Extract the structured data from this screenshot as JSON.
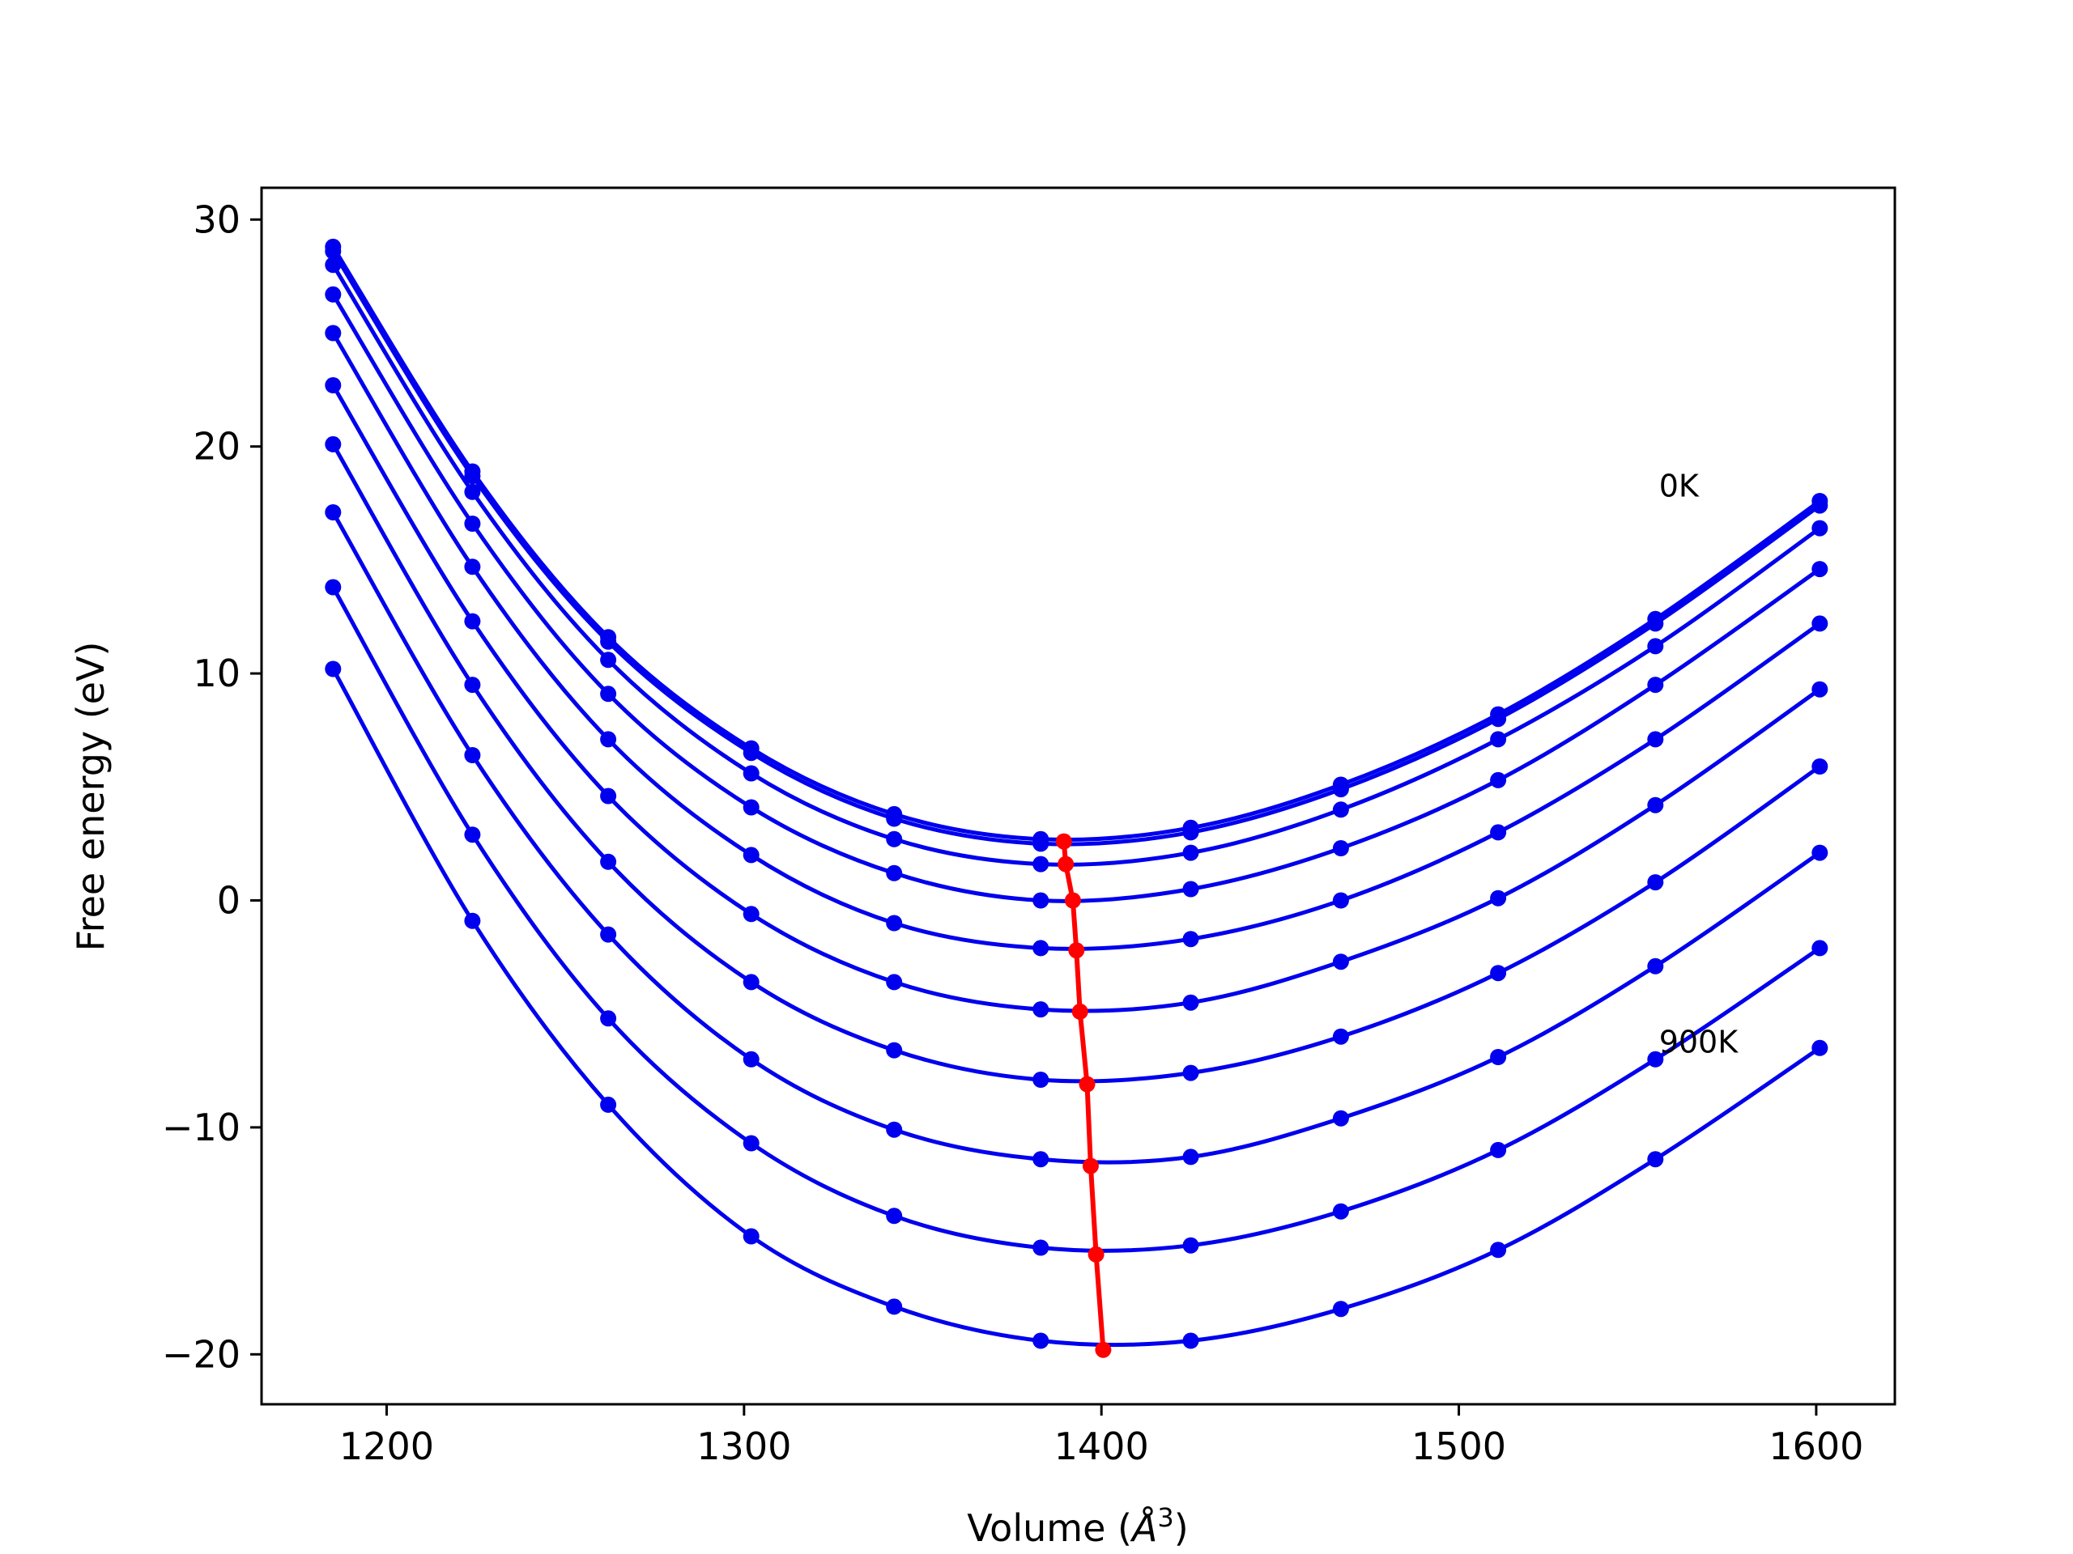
{
  "chart_data": {
    "type": "line",
    "title": "",
    "xlabel": "Volume (",
    "xlabel_symbol": "Å",
    "xlabel_exp": "3",
    "xlabel_close": ")",
    "ylabel": "Free energy (eV)",
    "xlim": [
      1165,
      1622
    ],
    "ylim": [
      -22.2,
      31.4
    ],
    "x_ticks": [
      1200,
      1300,
      1400,
      1500,
      1600
    ],
    "x_tick_labels": [
      "1200",
      "1300",
      "1400",
      "1500",
      "1600"
    ],
    "y_ticks": [
      -20,
      -10,
      0,
      10,
      20,
      30
    ],
    "y_tick_labels": [
      "−20",
      "−10",
      "0",
      "10",
      "20",
      "30"
    ],
    "grid": false,
    "x": [
      1185,
      1224,
      1262,
      1302,
      1342,
      1383,
      1425,
      1467,
      1511,
      1555,
      1601
    ],
    "colors": {
      "curves": "#0000ee",
      "minima": "#ff0000"
    },
    "series": [
      {
        "values": [
          28.8,
          18.9,
          11.6,
          6.7,
          3.8,
          2.7,
          3.2,
          5.1,
          8.2,
          12.4,
          17.6
        ]
      },
      {
        "values": [
          28.6,
          18.7,
          11.4,
          6.5,
          3.6,
          2.5,
          3.0,
          4.9,
          8.0,
          12.2,
          17.4
        ]
      },
      {
        "values": [
          28.0,
          18.0,
          10.6,
          5.6,
          2.7,
          1.6,
          2.1,
          4.0,
          7.1,
          11.2,
          16.4
        ]
      },
      {
        "values": [
          26.7,
          16.6,
          9.1,
          4.1,
          1.2,
          0.0,
          0.5,
          2.3,
          5.3,
          9.5,
          14.6
        ]
      },
      {
        "values": [
          25.0,
          14.7,
          7.1,
          2.0,
          -1.0,
          -2.1,
          -1.7,
          0.0,
          3.0,
          7.1,
          12.2
        ]
      },
      {
        "values": [
          22.7,
          12.3,
          4.6,
          -0.6,
          -3.6,
          -4.8,
          -4.5,
          -2.7,
          0.1,
          4.2,
          9.3
        ]
      },
      {
        "values": [
          20.1,
          9.5,
          1.7,
          -3.6,
          -6.6,
          -7.9,
          -7.6,
          -6.0,
          -3.2,
          0.8,
          5.9
        ]
      },
      {
        "values": [
          17.1,
          6.4,
          -1.5,
          -7.0,
          -10.1,
          -11.4,
          -11.3,
          -9.6,
          -6.9,
          -2.9,
          2.1
        ]
      },
      {
        "values": [
          13.8,
          2.9,
          -5.2,
          -10.7,
          -13.9,
          -15.3,
          -15.2,
          -13.7,
          -11.0,
          -7.0,
          -2.1
        ]
      },
      {
        "values": [
          10.2,
          -0.9,
          -9.0,
          -14.8,
          -17.9,
          -19.4,
          -19.4,
          -18.0,
          -15.4,
          -11.4,
          -6.5
        ]
      }
    ],
    "minima": {
      "x": [
        1389.5,
        1390,
        1392,
        1393,
        1394,
        1396,
        1397,
        1398.5,
        1400.5
      ],
      "y": [
        2.6,
        1.6,
        0.0,
        -2.2,
        -4.9,
        -8.1,
        -11.7,
        -15.6,
        -19.8
      ]
    },
    "annotations": [
      {
        "text": "0K",
        "x": 1556,
        "y": 17.8
      },
      {
        "text": "900K",
        "x": 1556,
        "y": -6.7
      }
    ]
  }
}
